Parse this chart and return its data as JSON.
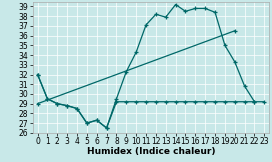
{
  "xlabel": "Humidex (Indice chaleur)",
  "bg_color": "#c8e8e8",
  "line_color": "#006868",
  "ylim": [
    26,
    39.5
  ],
  "xlim": [
    -0.5,
    23.5
  ],
  "yticks": [
    26,
    27,
    28,
    29,
    30,
    31,
    32,
    33,
    34,
    35,
    36,
    37,
    38,
    39
  ],
  "xticks": [
    0,
    1,
    2,
    3,
    4,
    5,
    6,
    7,
    8,
    9,
    10,
    11,
    12,
    13,
    14,
    15,
    16,
    17,
    18,
    19,
    20,
    21,
    22,
    23
  ],
  "line1_x": [
    0,
    1,
    2,
    3,
    4,
    5,
    6,
    7,
    8,
    9,
    10,
    11,
    12,
    13,
    14,
    15,
    16,
    17,
    18,
    19,
    20,
    21,
    22
  ],
  "line1_y": [
    32,
    29.5,
    29,
    28.8,
    28.5,
    27.0,
    27.3,
    26.5,
    29.5,
    32.3,
    34.3,
    37.1,
    38.2,
    37.9,
    39.2,
    38.5,
    38.8,
    38.8,
    38.4,
    35.0,
    33.3,
    30.8,
    29.2
  ],
  "line2_x": [
    0,
    1,
    2,
    3,
    4,
    5,
    6,
    7,
    8,
    9,
    10,
    11,
    12,
    13,
    14,
    15,
    16,
    17,
    18,
    19,
    20,
    21,
    22,
    23
  ],
  "line2_y": [
    32,
    29.5,
    29,
    28.8,
    28.5,
    27.0,
    27.3,
    26.5,
    29.2,
    29.2,
    29.2,
    29.2,
    29.2,
    29.2,
    29.2,
    29.2,
    29.2,
    29.2,
    29.2,
    29.2,
    29.2,
    29.2,
    29.2,
    29.2
  ],
  "line3_x": [
    0,
    20
  ],
  "line3_y": [
    29.0,
    36.5
  ],
  "xlabel_fontsize": 6.5,
  "tick_fontsize": 5.5,
  "linewidth": 0.9,
  "markersize": 3.5
}
